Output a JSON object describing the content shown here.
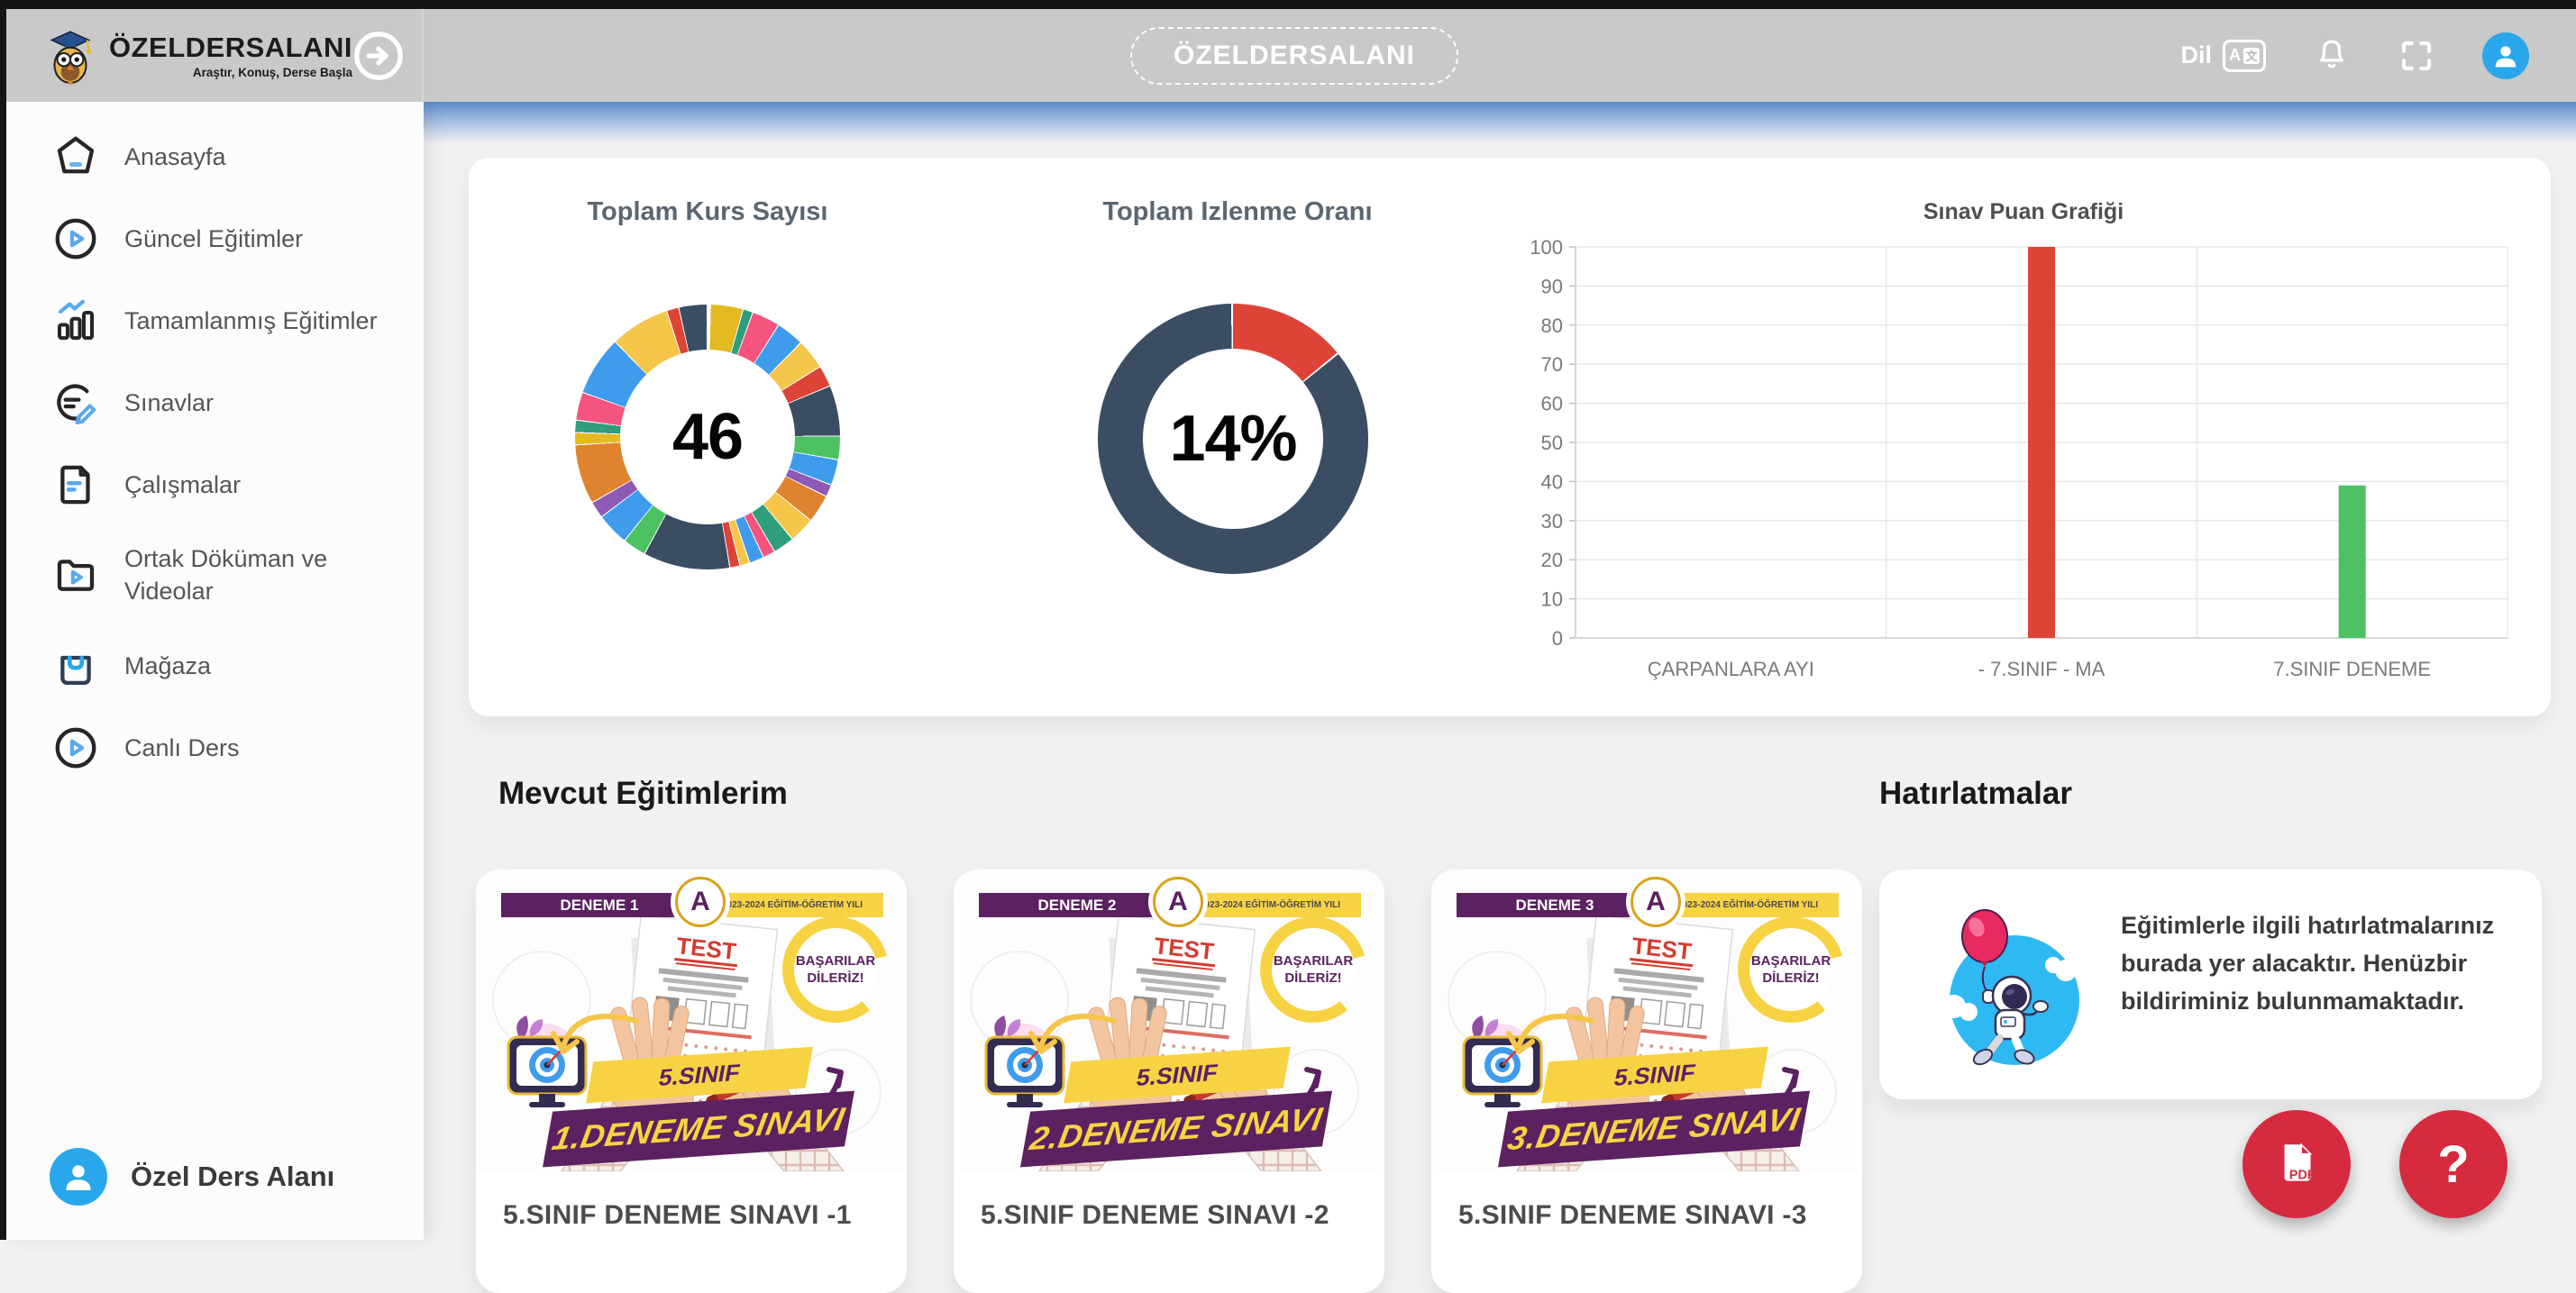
{
  "header": {
    "logo_title": "ÖZELDERSALANI",
    "logo_subtitle": "Araştır, Konuş, Derse Başla",
    "center_title": "ÖZELDERSALANI",
    "language_label": "Dil",
    "translate_glyph_a": "A",
    "translate_glyph_t": "文"
  },
  "sidebar": {
    "items": [
      {
        "label": "Anasayfa"
      },
      {
        "label": "Güncel Eğitimler"
      },
      {
        "label": "Tamamlanmış Eğitimler"
      },
      {
        "label": "Sınavlar"
      },
      {
        "label": "Çalışmalar"
      },
      {
        "label": "Ortak Döküman ve Videolar"
      },
      {
        "label": "Mağaza"
      },
      {
        "label": "Canlı Ders"
      }
    ],
    "footer_label": "Özel Ders Alanı"
  },
  "sections": {
    "courses_title": "Mevcut Eğitimlerim",
    "reminders_title": "Hatırlatmalar"
  },
  "chart_data": [
    {
      "type": "pie",
      "title": "Toplam Kurs Sayısı",
      "center_value": "46",
      "total_courses": 46,
      "donut": true,
      "legend": "none",
      "segments": [
        {
          "c": "#e3ba21",
          "d": 14
        },
        {
          "c": "#2f9e7c",
          "d": 4
        },
        {
          "c": "#f4547d",
          "d": 12
        },
        {
          "c": "#3f9ced",
          "d": 12
        },
        {
          "c": "#f6c64a",
          "d": 13
        },
        {
          "c": "#dd4437",
          "d": 9
        },
        {
          "c": "#3b4d63",
          "d": 22
        },
        {
          "c": "#4cc263",
          "d": 10
        },
        {
          "c": "#3f9ced",
          "d": 11
        },
        {
          "c": "#8d5ab6",
          "d": 5
        },
        {
          "c": "#e0832e",
          "d": 12
        },
        {
          "c": "#f6c64a",
          "d": 11
        },
        {
          "c": "#2f9e7c",
          "d": 9
        },
        {
          "c": "#f4547d",
          "d": 5
        },
        {
          "c": "#3f9ced",
          "d": 6
        },
        {
          "c": "#f6c64a",
          "d": 4
        },
        {
          "c": "#dd4437",
          "d": 4
        },
        {
          "c": "#3b4d63",
          "d": 38
        },
        {
          "c": "#4cc263",
          "d": 10
        },
        {
          "c": "#3f9ced",
          "d": 14
        },
        {
          "c": "#8d5ab6",
          "d": 7
        },
        {
          "c": "#e0832e",
          "d": 26
        },
        {
          "c": "#e3ba21",
          "d": 5
        },
        {
          "c": "#2f9e7c",
          "d": 5
        },
        {
          "c": "#f4547d",
          "d": 12
        },
        {
          "c": "#3f9ced",
          "d": 26
        },
        {
          "c": "#f6c64a",
          "d": 26
        },
        {
          "c": "#dd4437",
          "d": 5
        },
        {
          "c": "#3b4d63",
          "d": 12
        }
      ]
    },
    {
      "type": "pie",
      "title": "Toplam Izlenme Oranı",
      "center_value": "14%",
      "value_pct": 14,
      "donut": true,
      "color_filled": "#dd4437",
      "color_rest": "#3b4d63"
    },
    {
      "type": "bar",
      "title": "Sınav Puan Grafiği",
      "categories": [
        "ÇARPANLARA AYI",
        "- 7.SINIF - MA",
        "7.SINIF DENEME"
      ],
      "values": [
        0,
        100,
        39
      ],
      "bar_colors": [
        "#dd4437",
        "#dd4437",
        "#4cc263"
      ],
      "ylim": [
        0,
        100
      ],
      "ytick_step": 10,
      "grid": true,
      "legend_position": "none"
    }
  ],
  "courses": [
    {
      "title": "5.SINIF DENEME SINAVI -1",
      "cover": {
        "banner": "DENEME 1",
        "variant": "A",
        "year": "2023-2024 EĞİTİM-ÖĞRETİM YILI",
        "wish": "BAŞARILAR DİLERİZ!",
        "test_label": "TEST",
        "grade": "5.SINIF",
        "exam": "1.DENEME SINAVI"
      }
    },
    {
      "title": "5.SINIF DENEME SINAVI -2",
      "cover": {
        "banner": "DENEME 2",
        "variant": "A",
        "year": "2023-2024 EĞİTİM-ÖĞRETİM YILI",
        "wish": "BAŞARILAR DİLERİZ!",
        "test_label": "TEST",
        "grade": "5.SINIF",
        "exam": "2.DENEME SINAVI"
      }
    },
    {
      "title": "5.SINIF DENEME SINAVI -3",
      "cover": {
        "banner": "DENEME 3",
        "variant": "A",
        "year": "2023-2024 EĞİTİM-ÖĞRETİM YILI",
        "wish": "BAŞARILAR DİLERİZ!",
        "test_label": "TEST",
        "grade": "5.SINIF",
        "exam": "3.DENEME SINAVI"
      }
    }
  ],
  "reminders": {
    "text": "Eğitimlerle ilgili hatırlatmalarınız burada yer alacaktır. Henüzbir bildiriminiz bulunmamaktadır."
  },
  "fab": {
    "pdf_label": "PDF",
    "help_label": "?"
  }
}
